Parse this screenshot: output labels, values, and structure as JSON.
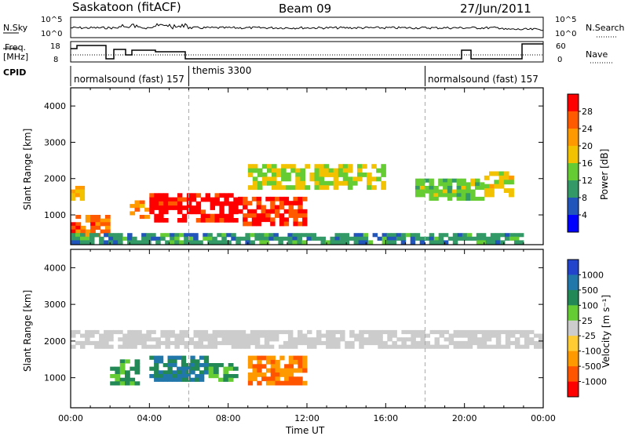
{
  "header": {
    "station": "Saskatoon (fitACF)",
    "beam": "Beam 09",
    "date": "27/Jun/2011"
  },
  "panels": {
    "nsky_label": "N.Sky",
    "nsky_top": "10^5",
    "nsky_bottom": "10^0",
    "nsearch_top": "10^5",
    "nsearch_bottom": "10^0",
    "nsearch_label": "N.Search",
    "freq_label_1": "Freq.",
    "freq_label_2": "[MHz]",
    "freq_top": "18",
    "freq_bottom": "8",
    "nave_top": "60",
    "nave_bottom": "0",
    "nave_label": "Nave",
    "cpid_label": "CPID",
    "cpid_segments": [
      "normalsound (fast) 157",
      "themis 3300",
      "normalsound (fast) 157"
    ]
  },
  "power_colorbar": {
    "label": "Power [dB]",
    "ticks": [
      "28",
      "24",
      "20",
      "16",
      "12",
      "8",
      "4"
    ],
    "colors": [
      "#ff0000",
      "#ff5a00",
      "#ff9900",
      "#f2c200",
      "#66cc33",
      "#339966",
      "#2255bb",
      "#0000ff"
    ]
  },
  "velocity_colorbar": {
    "label": "Velocity [m s⁻¹]",
    "ticks": [
      "1000",
      "500",
      "100",
      "25",
      "-25",
      "-100",
      "-500",
      "-1000"
    ],
    "colors": [
      "#2244cc",
      "#2277aa",
      "#228855",
      "#66cc33",
      "#cccccc",
      "#ffcc33",
      "#ff9900",
      "#ff5500",
      "#ff0000"
    ]
  },
  "chart_data": {
    "type": "heatmap",
    "xlabel": "Time UT",
    "ylabel": "Slant Range [km]",
    "x_ticks": [
      "00:00",
      "04:00",
      "08:00",
      "12:00",
      "16:00",
      "20:00",
      "00:00"
    ],
    "y_ticks": [
      "1000",
      "2000",
      "3000",
      "4000"
    ],
    "xlim_hours": [
      0,
      24
    ],
    "ylim_km": [
      180,
      4500
    ],
    "cpid_change_hours": [
      6,
      18
    ],
    "power_regions": [
      {
        "t0": 0.0,
        "t1": 2.0,
        "r0": 400,
        "r1": 1000,
        "level": 24
      },
      {
        "t0": 0.0,
        "t1": 0.7,
        "r0": 1400,
        "r1": 1800,
        "level": 18
      },
      {
        "t0": 3.0,
        "t1": 4.0,
        "r0": 800,
        "r1": 1400,
        "level": 20
      },
      {
        "t0": 4.0,
        "t1": 8.5,
        "r0": 800,
        "r1": 1600,
        "level": 28
      },
      {
        "t0": 8.5,
        "t1": 12.0,
        "r0": 700,
        "r1": 1500,
        "level": 26
      },
      {
        "t0": 9.0,
        "t1": 16.0,
        "r0": 1700,
        "r1": 2400,
        "level": 14
      },
      {
        "t0": 17.5,
        "t1": 21.0,
        "r0": 1400,
        "r1": 2000,
        "level": 12
      },
      {
        "t0": 21.0,
        "t1": 22.5,
        "r0": 1500,
        "r1": 2200,
        "level": 16
      },
      {
        "t0": 0.0,
        "t1": 23.0,
        "r0": 200,
        "r1": 500,
        "level": 8
      }
    ],
    "velocity_regions": [
      {
        "t0": 2.0,
        "t1": 3.5,
        "r0": 800,
        "r1": 1500,
        "velocity": 100
      },
      {
        "t0": 4.0,
        "t1": 7.0,
        "r0": 900,
        "r1": 1600,
        "velocity": 500
      },
      {
        "t0": 7.0,
        "t1": 8.5,
        "r0": 900,
        "r1": 1400,
        "velocity": 100
      },
      {
        "t0": 9.0,
        "t1": 12.0,
        "r0": 800,
        "r1": 1600,
        "velocity": -500
      },
      {
        "t0": 0.0,
        "t1": 24.0,
        "r0": 1800,
        "r1": 2300,
        "velocity": 0
      }
    ]
  }
}
